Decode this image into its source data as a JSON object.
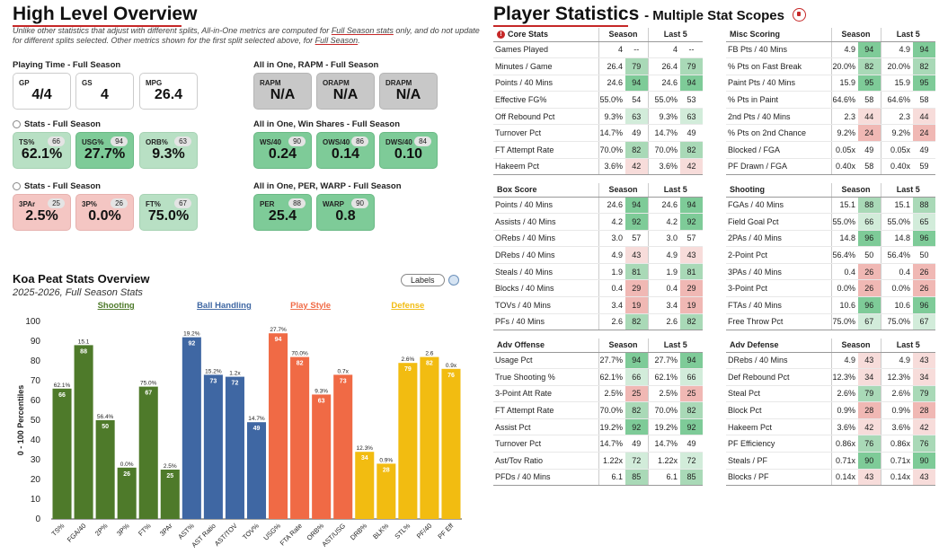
{
  "overview": {
    "title": "High Level Overview",
    "note_part1": "Unlike other statistics that adjust with different splits, All-in-One metrics are computed for ",
    "note_link1": "Full Season stats",
    "note_part2": " only, and do not update for different splits selected. Other metrics shown for the first split selected above, for ",
    "note_link2": "Full Season",
    "note_part3": "."
  },
  "playing_time": {
    "label": "Playing Time - Full Season",
    "cards": [
      {
        "name": "GP",
        "value": "4/4"
      },
      {
        "name": "GS",
        "value": "4"
      },
      {
        "name": "MPG",
        "value": "26.4"
      }
    ]
  },
  "rapm": {
    "label": "All in One, RAPM - Full Season",
    "cards": [
      {
        "name": "RAPM",
        "value": "N/A"
      },
      {
        "name": "ORAPM",
        "value": "N/A"
      },
      {
        "name": "DRAPM",
        "value": "N/A"
      }
    ]
  },
  "stats1": {
    "label": "Stats - Full Season",
    "cards": [
      {
        "name": "TS%",
        "pct": "66",
        "value": "62.1%"
      },
      {
        "name": "USG%",
        "pct": "94",
        "value": "27.7%"
      },
      {
        "name": "ORB%",
        "pct": "63",
        "value": "9.3%"
      }
    ]
  },
  "win_shares": {
    "label": "All in One, Win Shares - Full Season",
    "cards": [
      {
        "name": "WS/40",
        "pct": "90",
        "value": "0.24"
      },
      {
        "name": "OWS/40",
        "pct": "86",
        "value": "0.14"
      },
      {
        "name": "DWS/40",
        "pct": "84",
        "value": "0.10"
      }
    ]
  },
  "stats2": {
    "label": "Stats - Full Season",
    "cards": [
      {
        "name": "3PAr",
        "pct": "25",
        "value": "2.5%"
      },
      {
        "name": "3P%",
        "pct": "26",
        "value": "0.0%"
      },
      {
        "name": "FT%",
        "pct": "67",
        "value": "75.0%"
      }
    ]
  },
  "per_warp": {
    "label": "All in One, PER, WARP - Full Season",
    "cards": [
      {
        "name": "PER",
        "pct": "88",
        "value": "25.4"
      },
      {
        "name": "WARP",
        "pct": "90",
        "value": "0.8"
      }
    ]
  },
  "chart_header": {
    "title": "Koa Peat Stats Overview",
    "subtitle": "2025-2026, Full Season Stats",
    "labels_button": "Labels"
  },
  "chart_data": {
    "type": "bar",
    "title": "Koa Peat Stats Overview",
    "subtitle": "2025-2026, Full Season Stats",
    "ylabel": "0 - 100 Percentiles",
    "ylim": [
      0,
      100
    ],
    "yticks": [
      0,
      10,
      20,
      30,
      40,
      50,
      60,
      70,
      80,
      90,
      100
    ],
    "groups": [
      {
        "name": "Shooting",
        "color": "#4e7a2a"
      },
      {
        "name": "Ball Handling",
        "color": "#3f67a3"
      },
      {
        "name": "Play Style",
        "color": "#f06a45"
      },
      {
        "name": "Defense",
        "color": "#f2bc11"
      }
    ],
    "bars": [
      {
        "category": "TS%",
        "group": 0,
        "value": 66,
        "stat": "62.1%"
      },
      {
        "category": "FGA/40",
        "group": 0,
        "value": 88,
        "stat": "15.1"
      },
      {
        "category": "2P%",
        "group": 0,
        "value": 50,
        "stat": "56.4%"
      },
      {
        "category": "3P%",
        "group": 0,
        "value": 26,
        "stat": "0.0%"
      },
      {
        "category": "FT%",
        "group": 0,
        "value": 67,
        "stat": "75.0%"
      },
      {
        "category": "3PAr",
        "group": 0,
        "value": 25,
        "stat": "2.5%"
      },
      {
        "category": "AST%",
        "group": 1,
        "value": 92,
        "stat": "19.2%"
      },
      {
        "category": "AST Ratio",
        "group": 1,
        "value": 73,
        "stat": "15.2%"
      },
      {
        "category": "AST/TOV",
        "group": 1,
        "value": 72,
        "stat": "1.2x"
      },
      {
        "category": "TOV%",
        "group": 1,
        "value": 49,
        "stat": "14.7%"
      },
      {
        "category": "USG%",
        "group": 2,
        "value": 94,
        "stat": "27.7%"
      },
      {
        "category": "FTA Rate",
        "group": 2,
        "value": 82,
        "stat": "70.0%"
      },
      {
        "category": "ORB%",
        "group": 2,
        "value": 63,
        "stat": "9.3%"
      },
      {
        "category": "AST/USG",
        "group": 2,
        "value": 73,
        "stat": "0.7x"
      },
      {
        "category": "DRB%",
        "group": 3,
        "value": 34,
        "stat": "12.3%"
      },
      {
        "category": "BLK%",
        "group": 3,
        "value": 28,
        "stat": "0.9%"
      },
      {
        "category": "STL%",
        "group": 3,
        "value": 79,
        "stat": "2.6%"
      },
      {
        "category": "PF/40",
        "group": 3,
        "value": 82,
        "stat": "2.6"
      },
      {
        "category": "PF Eff",
        "group": 3,
        "value": 76,
        "stat": "0.9x"
      }
    ]
  },
  "player_stats": {
    "title": "Player Statistics",
    "subtitle": "- Multiple Stat Scopes",
    "col_season": "Season",
    "col_last5": "Last 5",
    "tables": [
      {
        "title": "Core Stats",
        "warn": "!",
        "rows": [
          [
            "Games Played",
            "4",
            "--",
            "4",
            "--"
          ],
          [
            "Minutes / Game",
            "26.4",
            "79",
            "26.4",
            "79"
          ],
          [
            "Points / 40 Mins",
            "24.6",
            "94",
            "24.6",
            "94"
          ],
          [
            "Effective FG%",
            "55.0%",
            "54",
            "55.0%",
            "53"
          ],
          [
            "Off Rebound Pct",
            "9.3%",
            "63",
            "9.3%",
            "63"
          ],
          [
            "Turnover Pct",
            "14.7%",
            "49",
            "14.7%",
            "49"
          ],
          [
            "FT Attempt Rate",
            "70.0%",
            "82",
            "70.0%",
            "82"
          ],
          [
            "Hakeem Pct",
            "3.6%",
            "42",
            "3.6%",
            "42"
          ]
        ]
      },
      {
        "title": "Misc Scoring",
        "rows": [
          [
            "FB Pts / 40 Mins",
            "4.9",
            "94",
            "4.9",
            "94"
          ],
          [
            "% Pts on Fast Break",
            "20.0%",
            "82",
            "20.0%",
            "82"
          ],
          [
            "Paint Pts / 40 Mins",
            "15.9",
            "95",
            "15.9",
            "95"
          ],
          [
            "% Pts in Paint",
            "64.6%",
            "58",
            "64.6%",
            "58"
          ],
          [
            "2nd Pts / 40 Mins",
            "2.3",
            "44",
            "2.3",
            "44"
          ],
          [
            "% Pts on 2nd Chance",
            "9.2%",
            "24",
            "9.2%",
            "24"
          ],
          [
            "Blocked / FGA",
            "0.05x",
            "49",
            "0.05x",
            "49"
          ],
          [
            "PF Drawn / FGA",
            "0.40x",
            "58",
            "0.40x",
            "59"
          ]
        ]
      },
      {
        "title": "Box Score",
        "rows": [
          [
            "Points / 40 Mins",
            "24.6",
            "94",
            "24.6",
            "94"
          ],
          [
            "Assists / 40 Mins",
            "4.2",
            "92",
            "4.2",
            "92"
          ],
          [
            "ORebs / 40 Mins",
            "3.0",
            "57",
            "3.0",
            "57"
          ],
          [
            "DRebs / 40 Mins",
            "4.9",
            "43",
            "4.9",
            "43"
          ],
          [
            "Steals / 40 Mins",
            "1.9",
            "81",
            "1.9",
            "81"
          ],
          [
            "Blocks / 40 Mins",
            "0.4",
            "29",
            "0.4",
            "29"
          ],
          [
            "TOVs / 40 Mins",
            "3.4",
            "19",
            "3.4",
            "19"
          ],
          [
            "PFs / 40 Mins",
            "2.6",
            "82",
            "2.6",
            "82"
          ]
        ]
      },
      {
        "title": "Shooting",
        "rows": [
          [
            "FGAs / 40 Mins",
            "15.1",
            "88",
            "15.1",
            "88"
          ],
          [
            "Field Goal Pct",
            "55.0%",
            "66",
            "55.0%",
            "65"
          ],
          [
            "2PAs / 40 Mins",
            "14.8",
            "96",
            "14.8",
            "96"
          ],
          [
            "2-Point Pct",
            "56.4%",
            "50",
            "56.4%",
            "50"
          ],
          [
            "3PAs / 40 Mins",
            "0.4",
            "26",
            "0.4",
            "26"
          ],
          [
            "3-Point Pct",
            "0.0%",
            "26",
            "0.0%",
            "26"
          ],
          [
            "FTAs / 40 Mins",
            "10.6",
            "96",
            "10.6",
            "96"
          ],
          [
            "Free Throw Pct",
            "75.0%",
            "67",
            "75.0%",
            "67"
          ]
        ]
      },
      {
        "title": "Adv Offense",
        "rows": [
          [
            "Usage Pct",
            "27.7%",
            "94",
            "27.7%",
            "94"
          ],
          [
            "True Shooting %",
            "62.1%",
            "66",
            "62.1%",
            "66"
          ],
          [
            "3-Point Att Rate",
            "2.5%",
            "25",
            "2.5%",
            "25"
          ],
          [
            "FT Attempt Rate",
            "70.0%",
            "82",
            "70.0%",
            "82"
          ],
          [
            "Assist Pct",
            "19.2%",
            "92",
            "19.2%",
            "92"
          ],
          [
            "Turnover Pct",
            "14.7%",
            "49",
            "14.7%",
            "49"
          ],
          [
            "Ast/Tov Ratio",
            "1.22x",
            "72",
            "1.22x",
            "72"
          ],
          [
            "PFDs / 40 Mins",
            "6.1",
            "85",
            "6.1",
            "85"
          ]
        ]
      },
      {
        "title": "Adv Defense",
        "rows": [
          [
            "DRebs / 40 Mins",
            "4.9",
            "43",
            "4.9",
            "43"
          ],
          [
            "Def Rebound Pct",
            "12.3%",
            "34",
            "12.3%",
            "34"
          ],
          [
            "Steal Pct",
            "2.6%",
            "79",
            "2.6%",
            "79"
          ],
          [
            "Block Pct",
            "0.9%",
            "28",
            "0.9%",
            "28"
          ],
          [
            "Hakeem Pct",
            "3.6%",
            "42",
            "3.6%",
            "42"
          ],
          [
            "PF Efficiency",
            "0.86x",
            "76",
            "0.86x",
            "76"
          ],
          [
            "Steals / PF",
            "0.71x",
            "90",
            "0.71x",
            "90"
          ],
          [
            "Blocks / PF",
            "0.14x",
            "43",
            "0.14x",
            "43"
          ]
        ]
      }
    ]
  }
}
